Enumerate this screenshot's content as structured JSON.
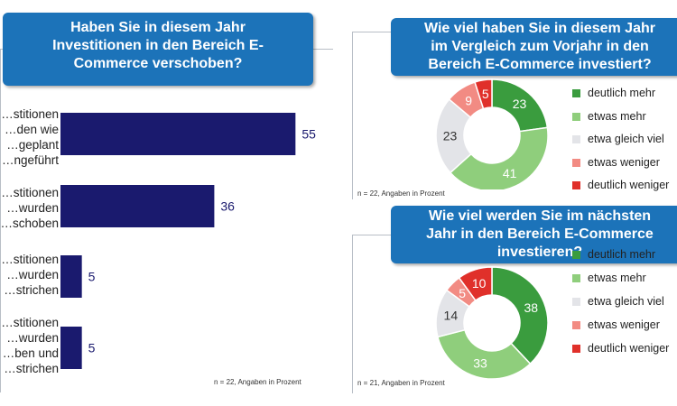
{
  "left": {
    "title_lines": [
      "Haben Sie in diesem Jahr",
      "Investitionen in den Bereich E-",
      "Commerce verschoben?"
    ],
    "note": "n = 22, Angaben in Prozent"
  },
  "top_right": {
    "title_lines": [
      "Wie viel haben Sie in diesem Jahr",
      "im Vergleich zum Vorjahr in den",
      "Bereich E-Commerce investiert?"
    ],
    "note": "n = 22, Angaben in Prozent"
  },
  "bottom_right": {
    "title_lines": [
      "Wie viel werden Sie im nächsten",
      "Jahr in den Bereich E-Commerce",
      "investieren?"
    ],
    "note": "n = 21, Angaben in Prozent"
  },
  "legend": [
    "deutlich mehr",
    "etwas mehr",
    "etwa gleich viel",
    "etwas weniger",
    "deutlich weniger"
  ],
  "colors": {
    "title_bg": "#1c73b9",
    "bar": "#1a1a6e",
    "deutlich_mehr": "#3a9c3e",
    "etwas_mehr": "#8fce7c",
    "etwa_gleich_viel": "#e3e4e8",
    "etwas_weniger": "#f28b83",
    "deutlich_weniger": "#e0302a"
  },
  "chart_data": [
    {
      "type": "bar",
      "orientation": "horizontal",
      "categories": [
        [
          "…stitionen",
          "…den wie",
          "…geplant",
          "…ngeführt"
        ],
        [
          "…stitionen",
          "…wurden",
          "…schoben"
        ],
        [
          "…stitionen",
          "…wurden",
          "…strichen"
        ],
        [
          "…stitionen",
          "…wurden",
          "…ben und",
          "…strichen"
        ]
      ],
      "values": [
        55,
        36,
        5,
        5
      ],
      "xlim": [
        0,
        60
      ],
      "grid": false
    },
    {
      "type": "pie",
      "variant": "donut",
      "labels": [
        "deutlich mehr",
        "etwas mehr",
        "etwa gleich viel",
        "etwas weniger",
        "deutlich weniger"
      ],
      "values": [
        23,
        41,
        23,
        9,
        5
      ],
      "legend": "right"
    },
    {
      "type": "pie",
      "variant": "donut",
      "labels": [
        "deutlich mehr",
        "etwas mehr",
        "etwa gleich viel",
        "etwas weniger",
        "deutlich weniger"
      ],
      "values": [
        38,
        33,
        14,
        5,
        10
      ],
      "legend": "right"
    }
  ]
}
